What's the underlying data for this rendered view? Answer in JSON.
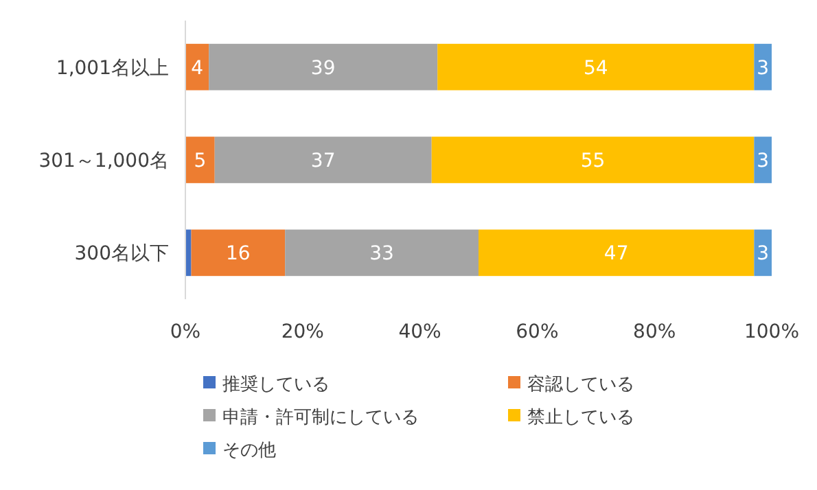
{
  "chart_data": {
    "type": "bar",
    "orientation": "horizontal",
    "stacked": true,
    "legend": "bottom",
    "grid": false,
    "categories": [
      "1,001名以上",
      "301～1,000名",
      "300名以下"
    ],
    "xlim": [
      0,
      100
    ],
    "xticks": [
      {
        "value": 0,
        "label": "0%"
      },
      {
        "value": 20,
        "label": "20%"
      },
      {
        "value": 40,
        "label": "40%"
      },
      {
        "value": 60,
        "label": "60%"
      },
      {
        "value": 80,
        "label": "80%"
      },
      {
        "value": 100,
        "label": "100%"
      }
    ],
    "series": [
      {
        "name": "推奨している",
        "color": "#4472c4",
        "values": [
          0,
          0,
          1
        ],
        "value_labels": [
          null,
          null,
          null
        ]
      },
      {
        "name": "容認している",
        "color": "#ed7d31",
        "values": [
          4,
          5,
          16
        ],
        "value_labels": [
          "4",
          "5",
          "16"
        ]
      },
      {
        "name": "申請・許可制にしている",
        "color": "#a5a5a5",
        "values": [
          39,
          37,
          33
        ],
        "value_labels": [
          "39",
          "37",
          "33"
        ]
      },
      {
        "name": "禁止している",
        "color": "#ffc000",
        "values": [
          54,
          55,
          47
        ],
        "value_labels": [
          "54",
          "55",
          "47"
        ]
      },
      {
        "name": "その他",
        "color": "#5b9bd5",
        "values": [
          3,
          3,
          3
        ],
        "value_labels": [
          "3",
          "3",
          "3"
        ]
      }
    ]
  }
}
